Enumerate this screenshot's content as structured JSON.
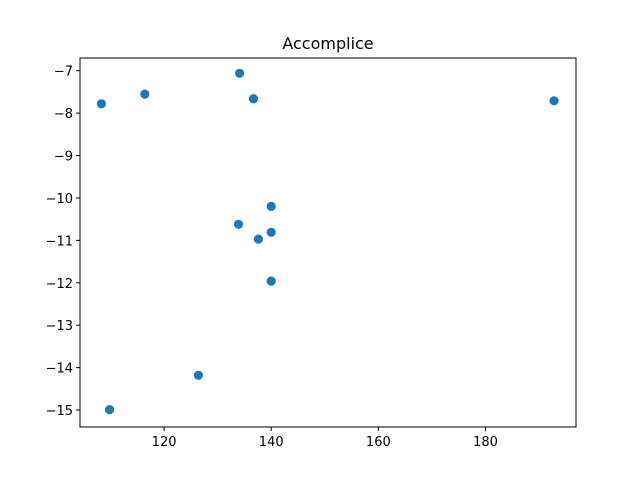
{
  "chart_data": {
    "type": "scatter",
    "title": "Accomplice",
    "xlabel": "",
    "ylabel": "",
    "xlim": [
      104.3,
      196.9
    ],
    "ylim": [
      -15.4,
      -6.7
    ],
    "x_ticks": [
      120,
      140,
      160,
      180
    ],
    "y_ticks": [
      -7,
      -8,
      -9,
      -10,
      -11,
      -12,
      -13,
      -14,
      -15
    ],
    "x_tick_labels": [
      "120",
      "140",
      "160",
      "180"
    ],
    "y_tick_labels": [
      "−7",
      "−8",
      "−9",
      "−10",
      "−11",
      "−12",
      "−13",
      "−14",
      "−15"
    ],
    "grid": false,
    "color": "#1f77b4",
    "points": [
      {
        "x": 108.3,
        "y": -7.78
      },
      {
        "x": 116.4,
        "y": -7.55
      },
      {
        "x": 134.1,
        "y": -7.06
      },
      {
        "x": 136.7,
        "y": -7.66
      },
      {
        "x": 192.8,
        "y": -7.71
      },
      {
        "x": 140.0,
        "y": -10.2
      },
      {
        "x": 133.9,
        "y": -10.62
      },
      {
        "x": 140.0,
        "y": -10.81
      },
      {
        "x": 137.6,
        "y": -10.97
      },
      {
        "x": 140.0,
        "y": -11.96
      },
      {
        "x": 126.4,
        "y": -14.18
      },
      {
        "x": 109.8,
        "y": -14.99
      }
    ]
  }
}
